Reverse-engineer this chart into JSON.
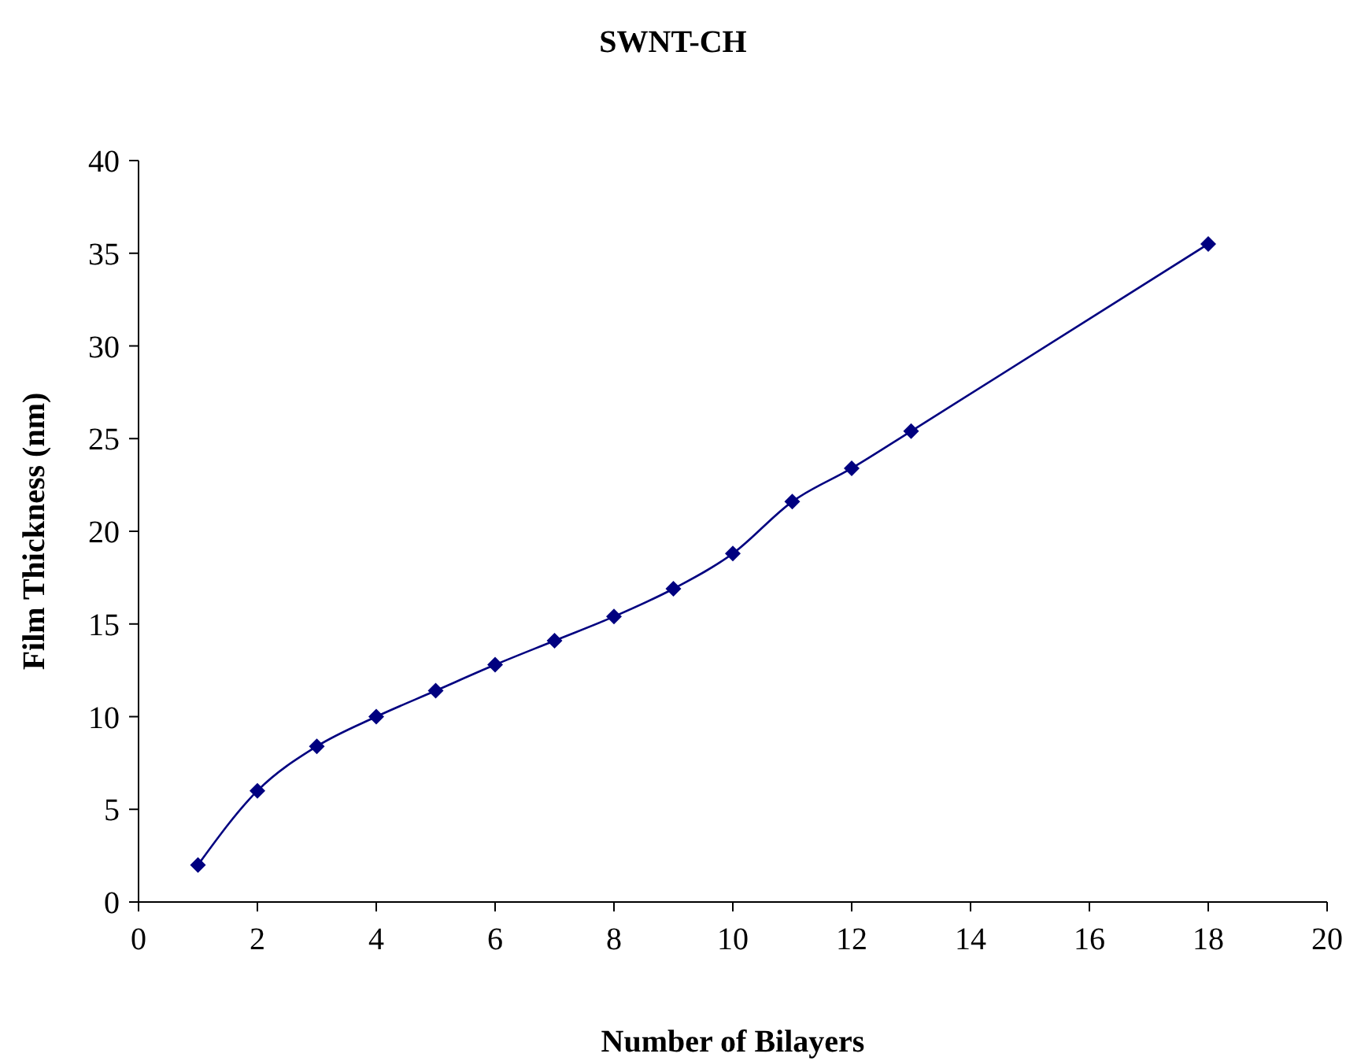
{
  "chart_data": {
    "type": "line",
    "title": "SWNT-CH",
    "xlabel": "Number of Bilayers",
    "ylabel": "Film Thickness (nm)",
    "x": [
      1,
      2,
      3,
      4,
      5,
      6,
      7,
      8,
      9,
      10,
      11,
      12,
      13,
      18
    ],
    "series": [
      {
        "color": "#000080",
        "values": [
          2.0,
          6.0,
          8.4,
          10.0,
          11.4,
          12.8,
          14.1,
          15.4,
          16.9,
          18.8,
          21.6,
          23.4,
          25.4,
          35.5
        ]
      }
    ],
    "xlim": [
      0,
      20
    ],
    "xticks": [
      0,
      2,
      4,
      6,
      8,
      10,
      12,
      14,
      16,
      18,
      20
    ],
    "ylim": [
      0,
      40
    ],
    "yticks": [
      0,
      5,
      10,
      15,
      20,
      25,
      30,
      35,
      40
    ],
    "marker": "diamond",
    "line_style": "solid"
  }
}
